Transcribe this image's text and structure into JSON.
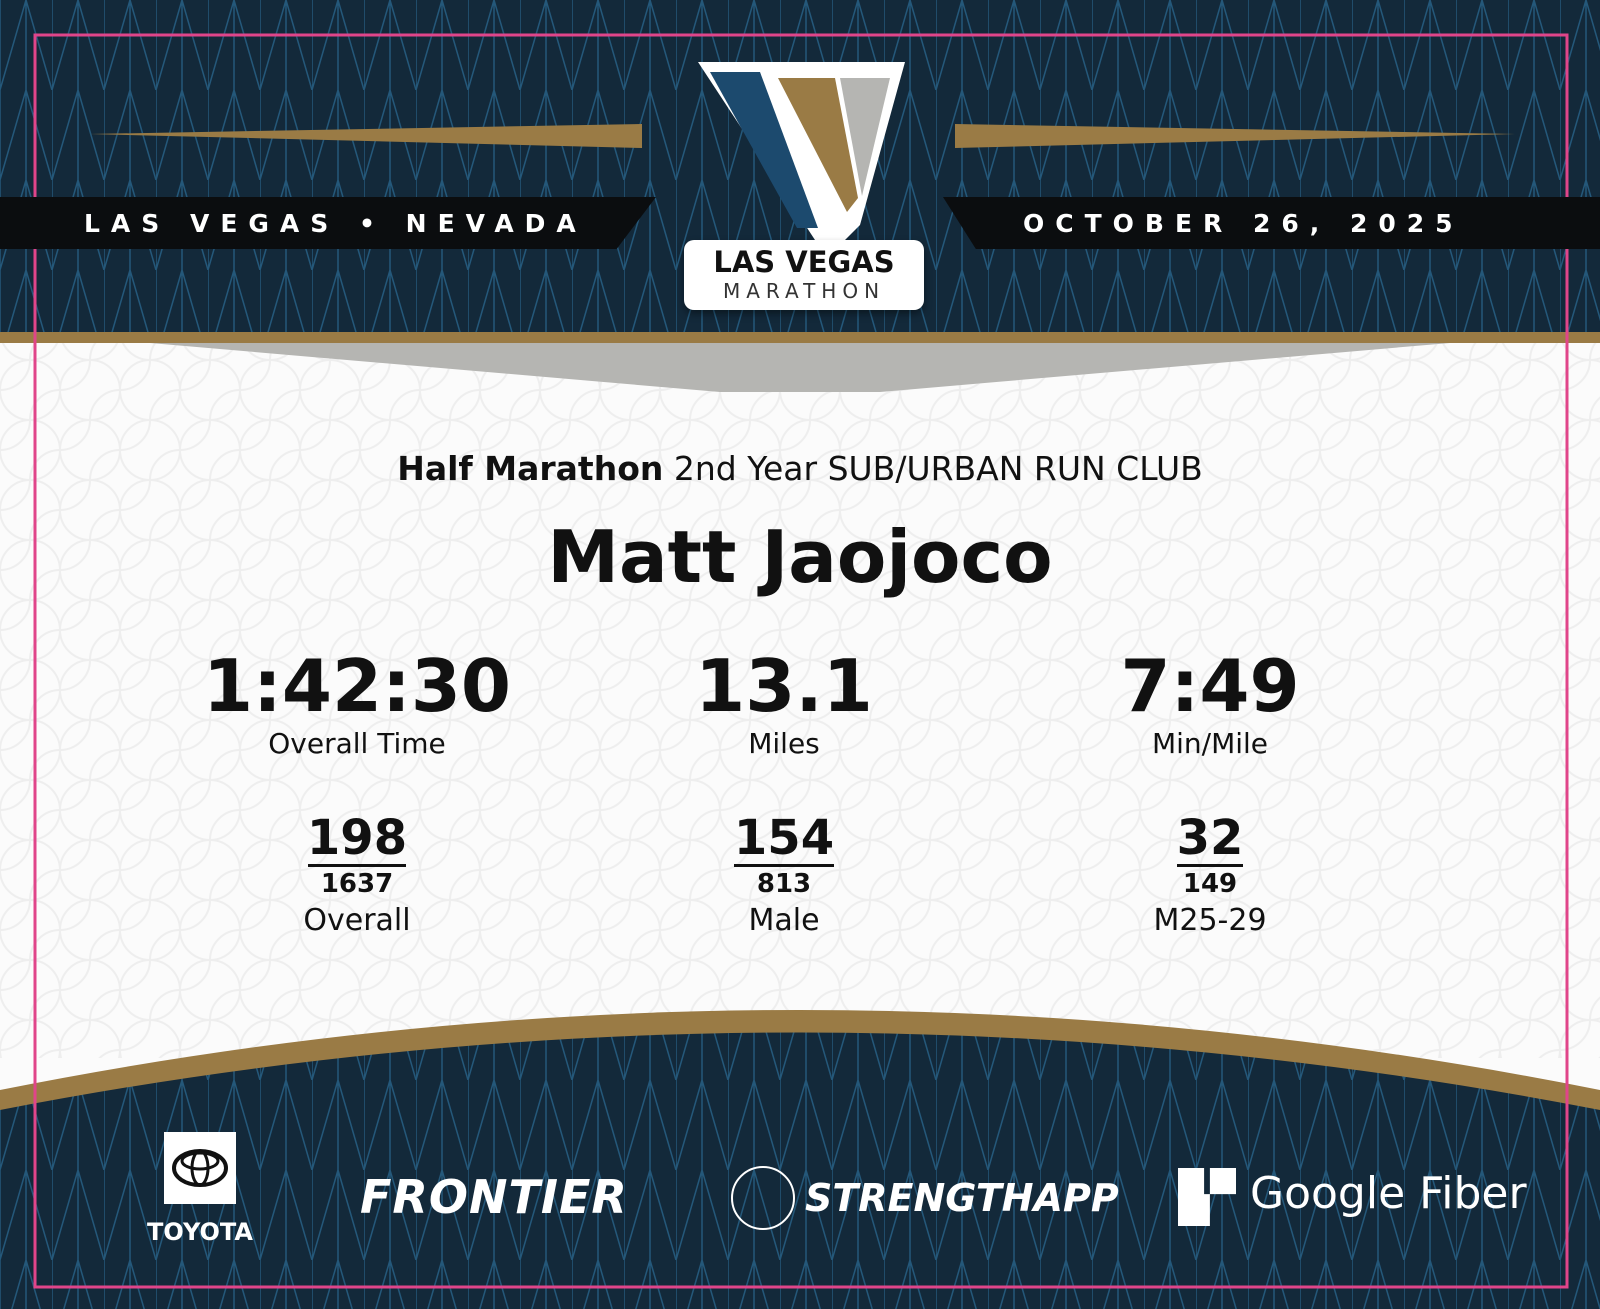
{
  "header": {
    "location": "LAS VEGAS • NEVADA",
    "date": "OCTOBER 26, 2025",
    "logo_line1": "LAS VEGAS",
    "logo_line2": "MARATHON"
  },
  "event": {
    "race": "Half Marathon",
    "team": "2nd Year SUB/URBAN RUN CLUB"
  },
  "runner": {
    "name": "Matt Jaojoco"
  },
  "stats": [
    {
      "value": "1:42:30",
      "label": "Overall Time"
    },
    {
      "value": "13.1",
      "label": "Miles"
    },
    {
      "value": "7:49",
      "label": "Min/Mile"
    }
  ],
  "ranks": [
    {
      "place": "198",
      "total": "1637",
      "category": "Overall"
    },
    {
      "place": "154",
      "total": "813",
      "category": "Male"
    },
    {
      "place": "32",
      "total": "149",
      "category": "M25-29"
    }
  ],
  "sponsors": {
    "toyota": "TOYOTA",
    "frontier": "FRONTIER",
    "strengthapp": "STRENGTHAPP",
    "google_fiber": "Google Fiber"
  },
  "colors": {
    "navy": "#14303f",
    "gold": "#9a7b45",
    "blue": "#1c4a6e",
    "gray": "#b5b5b2",
    "frame": "#e0458a"
  }
}
